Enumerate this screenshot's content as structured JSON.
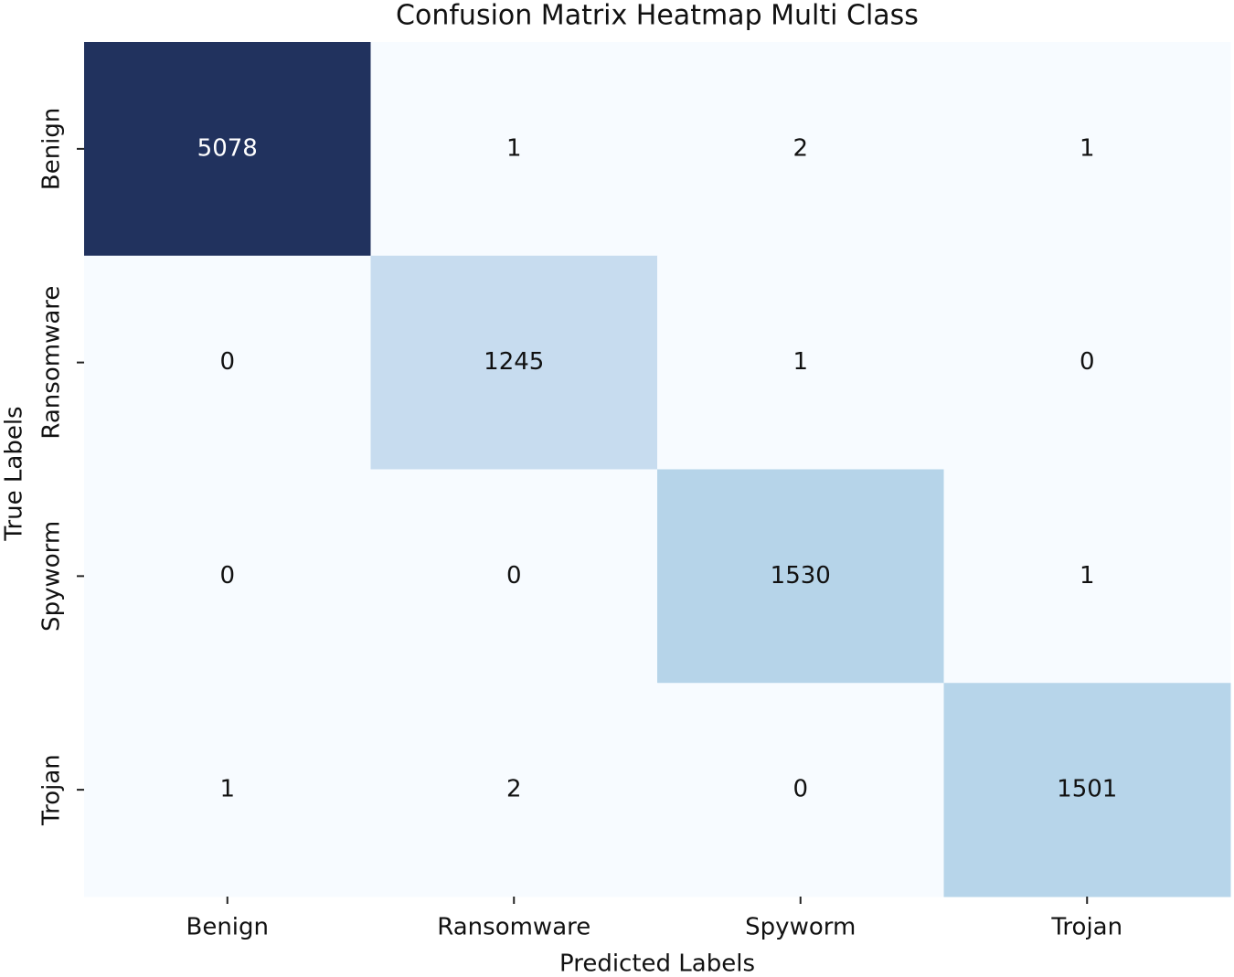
{
  "chart_data": {
    "type": "heatmap",
    "title": "Confusion Matrix Heatmap Multi Class",
    "x_label": "Predicted Labels",
    "y_label": "True Labels",
    "x_categories": [
      "Benign",
      "Ransomware",
      "Spyworm",
      "Trojan"
    ],
    "y_categories": [
      "Benign",
      "Ransomware",
      "Spyworm",
      "Trojan"
    ],
    "values": [
      [
        5078,
        1,
        2,
        1
      ],
      [
        0,
        1245,
        1,
        0
      ],
      [
        0,
        0,
        1530,
        1
      ],
      [
        1,
        2,
        0,
        1501
      ]
    ],
    "colormap": [
      "#f7fbff",
      "#deebf7",
      "#c6dbef",
      "#9ecae1",
      "#6baed6",
      "#4292c6",
      "#2171b5",
      "#1f4a8a",
      "#21325e"
    ]
  }
}
